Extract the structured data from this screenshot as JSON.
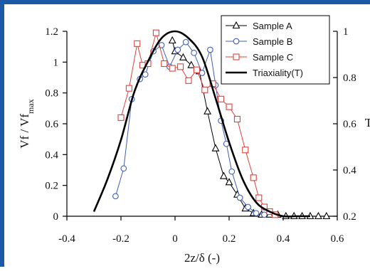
{
  "chart_data": {
    "type": "line",
    "xlabel": "2z/δ (-)",
    "ylabel": "Vf / Vf",
    "ylabel_sub": "max",
    "ylabel_right": "T",
    "xlim": [
      -0.4,
      0.6
    ],
    "ylim": [
      0,
      1.2
    ],
    "ylim_right": [
      0.2,
      1.0
    ],
    "xticks": [
      "-0.4",
      "-0.2",
      "0",
      "0.2",
      "0.4",
      "0.6"
    ],
    "yticks": [
      "0",
      "0.2",
      "0.4",
      "0.6",
      "0.8",
      "1",
      "1.2"
    ],
    "yticks_right": [
      "0.2",
      "0.4",
      "0.6",
      "0.8",
      "1"
    ],
    "legend_position": "top-right",
    "grid": false,
    "series": [
      {
        "name": "Sample A",
        "marker": "triangle",
        "color": "#000000",
        "x": [
          -0.01,
          0.0,
          0.03,
          0.06,
          0.09,
          0.12,
          0.15,
          0.18,
          0.2,
          0.23,
          0.26,
          0.29,
          0.32,
          0.35,
          0.38,
          0.41,
          0.44,
          0.47,
          0.5,
          0.53,
          0.56
        ],
        "y": [
          1.14,
          1.07,
          1.03,
          0.98,
          0.94,
          0.68,
          0.44,
          0.26,
          0.22,
          0.14,
          0.05,
          0.02,
          0.01,
          0.01,
          0.01,
          0.0,
          0.0,
          0.0,
          0.0,
          0.0,
          0.0
        ]
      },
      {
        "name": "Sample B",
        "marker": "circle",
        "color": "#3f5fb8",
        "x": [
          -0.22,
          -0.19,
          -0.16,
          -0.13,
          -0.11,
          -0.08,
          -0.05,
          -0.02,
          0.01,
          0.04,
          0.07,
          0.1,
          0.13,
          0.15,
          0.17,
          0.19,
          0.21,
          0.24,
          0.27,
          0.3,
          0.33
        ],
        "y": [
          0.13,
          0.31,
          0.76,
          0.89,
          0.92,
          1.07,
          1.11,
          0.97,
          1.08,
          1.13,
          1.06,
          0.93,
          1.08,
          0.85,
          0.62,
          0.47,
          0.29,
          0.12,
          0.06,
          0.02,
          0.01
        ]
      },
      {
        "name": "Sample C",
        "marker": "square",
        "color": "#e0403a",
        "x": [
          -0.2,
          -0.17,
          -0.14,
          -0.12,
          -0.1,
          -0.07,
          -0.04,
          -0.01,
          0.02,
          0.05,
          0.08,
          0.11,
          0.14,
          0.17,
          0.2,
          0.23,
          0.26,
          0.29,
          0.31,
          0.33,
          0.35,
          0.37
        ],
        "y": [
          0.64,
          0.83,
          1.12,
          0.98,
          0.99,
          1.19,
          0.99,
          0.96,
          0.97,
          0.88,
          0.95,
          0.82,
          0.86,
          0.76,
          0.71,
          0.63,
          0.43,
          0.25,
          0.12,
          0.06,
          0.03,
          0.01
        ]
      },
      {
        "name": "Triaxiality(T)",
        "marker": "none",
        "color": "#000000",
        "axis": "right",
        "x": [
          -0.3,
          -0.25,
          -0.2,
          -0.15,
          -0.1,
          -0.05,
          0.0,
          0.05,
          0.1,
          0.15,
          0.2,
          0.25,
          0.3,
          0.35,
          0.4,
          0.45,
          0.5
        ],
        "y": [
          0.22,
          0.36,
          0.53,
          0.74,
          0.87,
          0.97,
          1.0,
          0.97,
          0.89,
          0.71,
          0.52,
          0.36,
          0.26,
          0.22,
          0.2,
          0.2,
          0.2
        ]
      }
    ]
  }
}
